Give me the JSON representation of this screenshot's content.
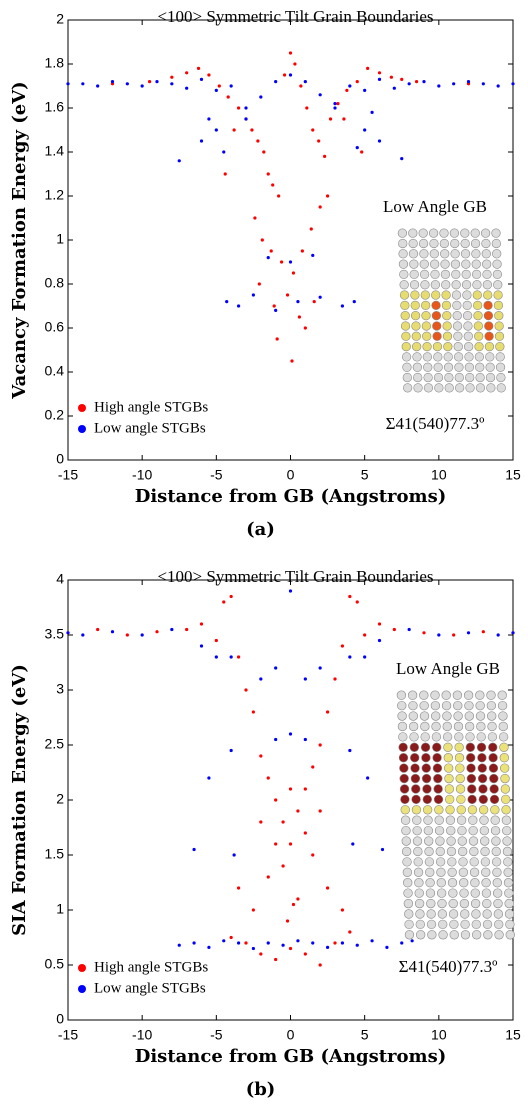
{
  "chart_data": [
    {
      "type": "scatter",
      "title": "<100> Symmetric Tilt Grain Boundaries",
      "xlabel": "Distance from GB (Angstroms)",
      "ylabel": "Vacancy Formation Energy (eV)",
      "caption": "(a)",
      "xlim": [
        -15,
        15
      ],
      "ylim": [
        0,
        2
      ],
      "xticks": [
        -15,
        -10,
        -5,
        0,
        5,
        10,
        15
      ],
      "yticks": [
        0,
        0.2,
        0.4,
        0.6,
        0.8,
        1,
        1.2,
        1.4,
        1.6,
        1.8,
        2
      ],
      "legend": "lower left",
      "inset_title": "Low Angle GB",
      "inset_label": "Σ41(540)77.3º",
      "series": [
        {
          "name": "High angle STGBs",
          "color": "#ff0000",
          "x": [
            -9.5,
            -8,
            -7,
            -6.2,
            -5.5,
            -4.8,
            -4.2,
            -3.5,
            -3,
            -2.6,
            -2.2,
            -1.8,
            -1.5,
            -1.2,
            -0.8,
            -0.4,
            0,
            0.3,
            0.7,
            1.1,
            1.5,
            1.9,
            2.3,
            2.7,
            3.2,
            3.8,
            4.5,
            5.2,
            6,
            6.8,
            7.5,
            8.5,
            -2.4,
            -1.9,
            -1.3,
            -0.6,
            0.2,
            0.8,
            1.4,
            2,
            2.5,
            -2.1,
            -1.1,
            -0.2,
            0.6,
            1.6,
            -0.9,
            0.1,
            1.0,
            -3.8,
            3.6,
            -12,
            12,
            -4.4,
            4.8
          ],
          "values": [
            1.72,
            1.74,
            1.76,
            1.78,
            1.75,
            1.7,
            1.65,
            1.6,
            1.55,
            1.5,
            1.45,
            1.4,
            1.3,
            1.25,
            1.2,
            1.75,
            1.85,
            1.8,
            1.7,
            1.6,
            1.5,
            1.45,
            1.38,
            1.55,
            1.62,
            1.68,
            1.72,
            1.78,
            1.76,
            1.74,
            1.73,
            1.72,
            1.1,
            1.0,
            0.95,
            0.9,
            0.85,
            0.95,
            1.05,
            1.15,
            1.2,
            0.8,
            0.7,
            0.75,
            0.65,
            0.72,
            0.55,
            0.45,
            0.6,
            1.5,
            1.55,
            1.71,
            1.71,
            1.3,
            1.4
          ]
        },
        {
          "name": "Low angle STGBs",
          "color": "#0000ff",
          "x": [
            -15,
            -14,
            -13,
            -12,
            -11,
            -10,
            -9,
            -8,
            -7,
            -6,
            -5,
            -4,
            -3,
            -2,
            -1,
            0,
            1,
            2,
            3,
            4,
            5,
            6,
            7,
            8,
            9,
            10,
            11,
            12,
            13,
            14,
            15,
            -7.5,
            -6,
            -5,
            -4.5,
            4.5,
            5,
            6,
            7.5,
            -4.3,
            -3.5,
            -2.5,
            -1,
            0.5,
            2,
            3.5,
            4.3,
            -1.5,
            0,
            1.5,
            -5.5,
            5.5,
            -3,
            3
          ],
          "values": [
            1.71,
            1.71,
            1.7,
            1.72,
            1.71,
            1.7,
            1.72,
            1.71,
            1.69,
            1.73,
            1.68,
            1.7,
            1.6,
            1.65,
            1.72,
            1.75,
            1.72,
            1.66,
            1.62,
            1.7,
            1.68,
            1.73,
            1.69,
            1.71,
            1.72,
            1.7,
            1.71,
            1.72,
            1.71,
            1.7,
            1.71,
            1.36,
            1.45,
            1.5,
            1.4,
            1.42,
            1.5,
            1.45,
            1.37,
            0.72,
            0.7,
            0.75,
            0.68,
            0.72,
            0.74,
            0.7,
            0.72,
            0.92,
            0.9,
            0.93,
            1.55,
            1.58,
            1.55,
            1.6
          ]
        }
      ]
    },
    {
      "type": "scatter",
      "title": "<100> Symmetric Tilt Grain Boundaries",
      "xlabel": "Distance from GB (Angstroms)",
      "ylabel": "SIA Formation Energy (eV)",
      "caption": "(b)",
      "xlim": [
        -15,
        15
      ],
      "ylim": [
        0,
        4
      ],
      "xticks": [
        -15,
        -10,
        -5,
        0,
        5,
        10,
        15
      ],
      "yticks": [
        0,
        0.5,
        1,
        1.5,
        2,
        2.5,
        3,
        3.5,
        4
      ],
      "legend": "lower left",
      "inset_title": "Low Angle GB",
      "inset_label": "Σ41(540)77.3º",
      "series": [
        {
          "name": "High angle STGBs",
          "color": "#ff0000",
          "x": [
            -15,
            -13,
            -11,
            -9,
            -7,
            -6,
            -5,
            -4.5,
            -4,
            -3.5,
            -3,
            -2.5,
            -2,
            -1.5,
            -1,
            -0.5,
            0,
            0.5,
            1,
            1.5,
            2,
            2.5,
            3,
            3.5,
            4,
            4.5,
            5,
            6,
            7,
            9,
            11,
            13,
            15,
            -4,
            -3,
            -2,
            -1,
            0,
            1,
            2,
            3,
            4,
            -3.5,
            -2.5,
            -1.5,
            -0.5,
            0.5,
            1.5,
            2.5,
            3.5,
            -2,
            -1,
            0,
            1,
            2,
            -0.2,
            0.2
          ],
          "values": [
            3.52,
            3.55,
            3.5,
            3.53,
            3.55,
            3.6,
            3.45,
            3.8,
            3.85,
            3.3,
            3.0,
            2.8,
            2.4,
            2.2,
            2.0,
            1.8,
            1.6,
            1.9,
            2.1,
            2.3,
            2.5,
            2.8,
            3.1,
            3.4,
            3.85,
            3.8,
            3.5,
            3.6,
            3.55,
            3.52,
            3.5,
            3.53,
            3.52,
            0.75,
            0.7,
            0.6,
            0.55,
            0.65,
            0.6,
            0.5,
            0.7,
            0.8,
            1.2,
            1.0,
            1.3,
            1.4,
            1.1,
            1.5,
            1.2,
            1.0,
            1.8,
            1.6,
            2.1,
            1.7,
            1.9,
            0.9,
            1.05
          ]
        },
        {
          "name": "Low angle STGBs",
          "color": "#0000ff",
          "x": [
            -15,
            -14,
            -12,
            -10,
            -8,
            -6,
            -5,
            5,
            6,
            8,
            10,
            12,
            14,
            15,
            -7.5,
            -6.5,
            -5.5,
            -4.5,
            -3.5,
            -2.5,
            -1.5,
            -0.5,
            0.5,
            1.5,
            2.5,
            3.5,
            4.5,
            5.5,
            6.5,
            7.5,
            8.2,
            -4,
            -2,
            -1,
            0,
            1,
            2,
            4,
            -5.5,
            5.2,
            -4,
            4,
            -6.5,
            6.2,
            -3.8,
            4.2,
            0,
            -1,
            1
          ],
          "values": [
            3.52,
            3.5,
            3.53,
            3.5,
            3.55,
            3.4,
            3.3,
            3.3,
            3.45,
            3.55,
            3.5,
            3.52,
            3.5,
            3.52,
            0.68,
            0.7,
            0.66,
            0.72,
            0.7,
            0.65,
            0.7,
            0.68,
            0.72,
            0.7,
            0.66,
            0.7,
            0.68,
            0.72,
            0.66,
            0.7,
            0.72,
            3.3,
            3.1,
            3.2,
            3.9,
            3.1,
            3.2,
            3.3,
            2.2,
            2.2,
            2.45,
            2.45,
            1.55,
            1.55,
            1.5,
            1.6,
            2.6,
            2.55,
            2.55
          ]
        }
      ]
    }
  ]
}
